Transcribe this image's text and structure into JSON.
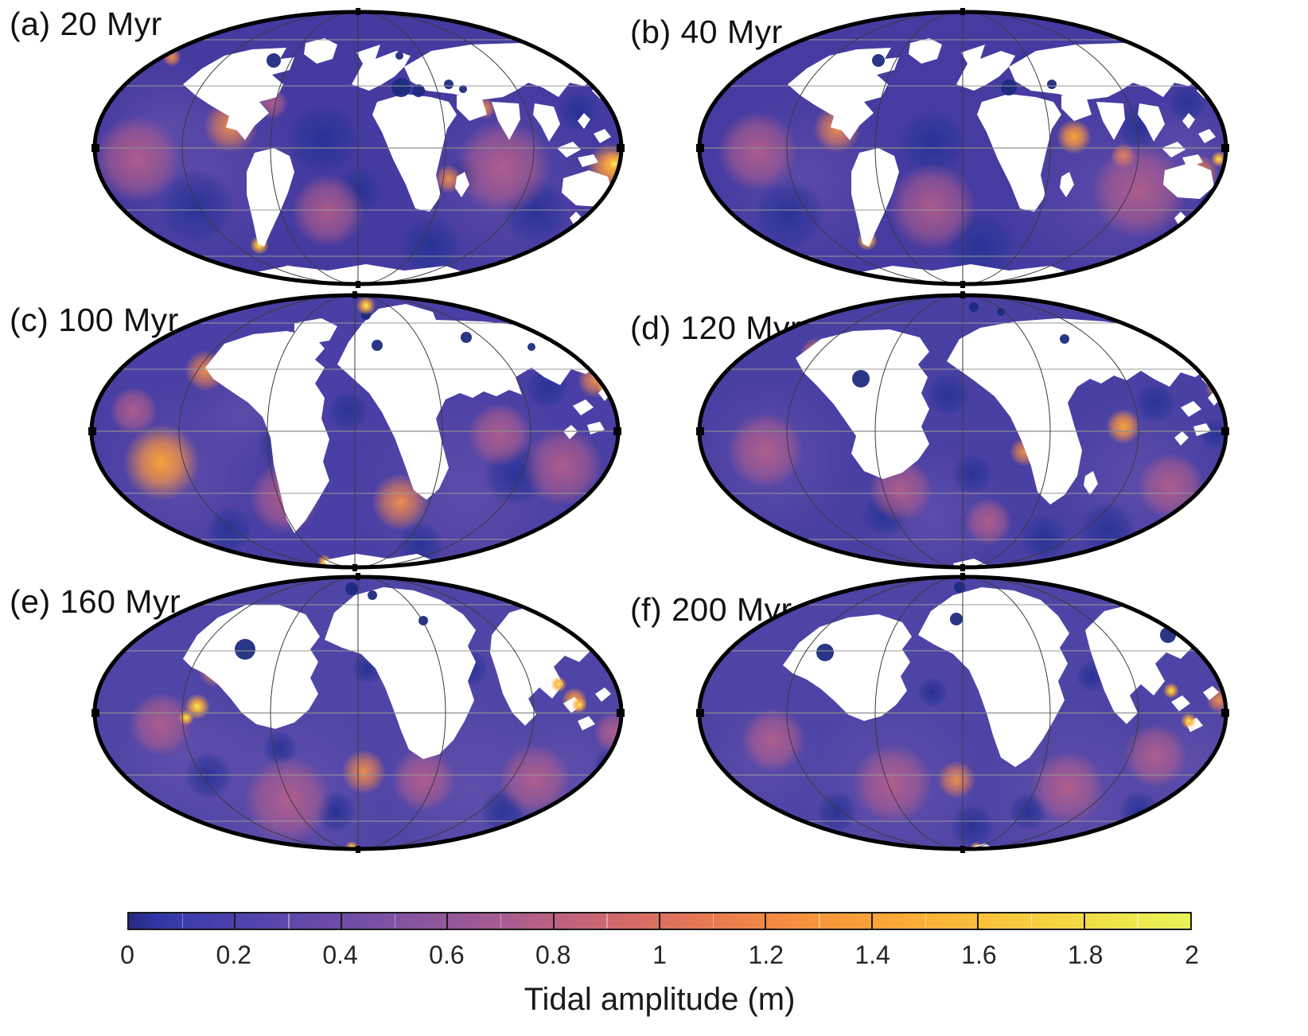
{
  "figure": {
    "panels": [
      {
        "id": "a",
        "label": "(a) 20 Myr"
      },
      {
        "id": "b",
        "label": "(b) 40 Myr"
      },
      {
        "id": "c",
        "label": "(c) 100 Myr"
      },
      {
        "id": "d",
        "label": "(d) 120 Myr"
      },
      {
        "id": "e",
        "label": "(e) 160 Myr"
      },
      {
        "id": "f",
        "label": "(f) 200 Myr"
      }
    ],
    "colorbar": {
      "title": "Tidal amplitude (m)",
      "min": 0,
      "max": 2,
      "ticks": [
        "0",
        "0.2",
        "0.4",
        "0.6",
        "0.8",
        "1",
        "1.2",
        "1.4",
        "1.6",
        "1.8",
        "2"
      ],
      "tick_values": [
        0,
        0.2,
        0.4,
        0.6,
        0.8,
        1,
        1.2,
        1.4,
        1.6,
        1.8,
        2
      ],
      "minor_tick_values": [
        0.1,
        0.3,
        0.5,
        0.7,
        0.9,
        1.1,
        1.3,
        1.5,
        1.7,
        1.9
      ],
      "gradient_stops": [
        {
          "value": 0.0,
          "color": "#262b7d"
        },
        {
          "value": 0.05,
          "color": "#2e35a3"
        },
        {
          "value": 0.1,
          "color": "#3c3bab"
        },
        {
          "value": 0.2,
          "color": "#4c41ac"
        },
        {
          "value": 0.3,
          "color": "#5d47aa"
        },
        {
          "value": 0.4,
          "color": "#6e4ca7"
        },
        {
          "value": 0.5,
          "color": "#8052a2"
        },
        {
          "value": 0.6,
          "color": "#93579b"
        },
        {
          "value": 0.7,
          "color": "#a75b90"
        },
        {
          "value": 0.8,
          "color": "#bb6182"
        },
        {
          "value": 0.9,
          "color": "#cd6770"
        },
        {
          "value": 1.0,
          "color": "#dc705f"
        },
        {
          "value": 1.1,
          "color": "#e87b50"
        },
        {
          "value": 1.2,
          "color": "#f18844"
        },
        {
          "value": 1.3,
          "color": "#f6953c"
        },
        {
          "value": 1.4,
          "color": "#f9a238"
        },
        {
          "value": 1.5,
          "color": "#fbb038"
        },
        {
          "value": 1.6,
          "color": "#fabf3c"
        },
        {
          "value": 1.7,
          "color": "#f6cd41"
        },
        {
          "value": 1.8,
          "color": "#f1db47"
        },
        {
          "value": 1.9,
          "color": "#ece94e"
        },
        {
          "value": 2.0,
          "color": "#e8f25a"
        }
      ]
    },
    "palette": {
      "land": "#ffffff",
      "map_outline": "#000000",
      "graticule_parallel": "#9a9a9a",
      "graticule_meridian": "#3a3a3a"
    }
  }
}
